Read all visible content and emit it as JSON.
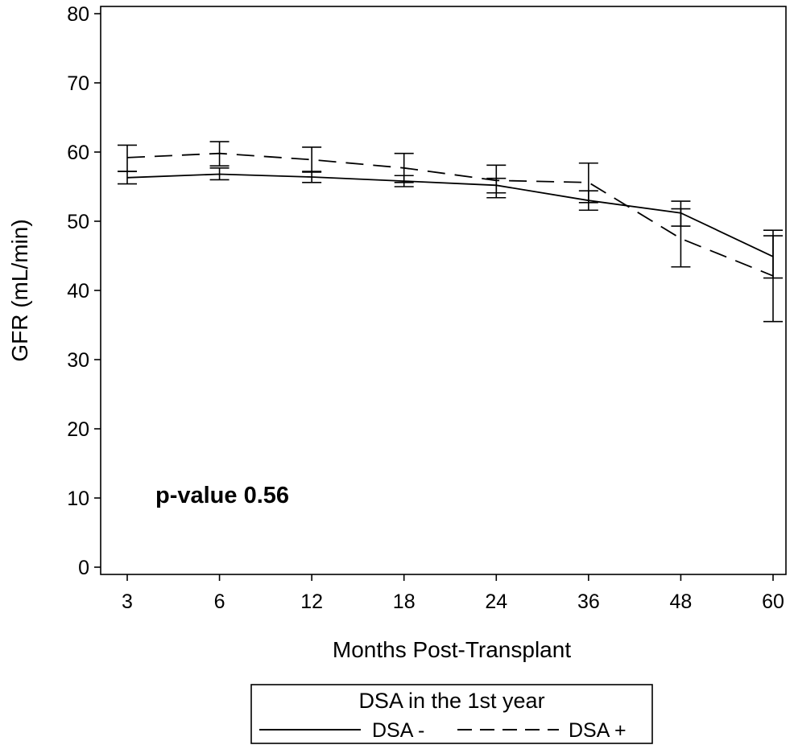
{
  "chart_data": {
    "type": "line",
    "xlabel": "Months Post-Transplant",
    "ylabel": "GFR (mL/min)",
    "categories": [
      "3",
      "6",
      "12",
      "18",
      "24",
      "36",
      "48",
      "60"
    ],
    "ylim": [
      0,
      80
    ],
    "yticks": [
      0,
      10,
      20,
      30,
      40,
      50,
      60,
      70,
      80
    ],
    "grid": false,
    "annotation": "p-value 0.56",
    "legend": {
      "title": "DSA in the 1st year",
      "placement": "bottom-center",
      "entries": [
        "DSA -",
        "DSA +"
      ]
    },
    "series": [
      {
        "name": "DSA -",
        "line_style": "solid",
        "values": [
          56.3,
          56.8,
          56.4,
          55.8,
          55.2,
          53.0,
          51.2,
          44.9
        ],
        "lower": [
          55.4,
          56.0,
          55.6,
          55.0,
          54.1,
          51.6,
          49.3,
          41.8
        ],
        "upper": [
          57.2,
          57.7,
          57.2,
          56.6,
          56.2,
          54.4,
          51.8,
          47.9
        ]
      },
      {
        "name": "DSA +",
        "line_style": "dashed",
        "values": [
          59.2,
          59.8,
          58.9,
          57.7,
          55.9,
          55.6,
          47.5,
          42.1
        ],
        "lower": [
          57.2,
          58.0,
          57.1,
          55.6,
          53.4,
          52.7,
          43.4,
          35.5
        ],
        "upper": [
          61.0,
          61.5,
          60.7,
          59.8,
          58.1,
          58.4,
          52.9,
          48.7
        ]
      }
    ]
  }
}
